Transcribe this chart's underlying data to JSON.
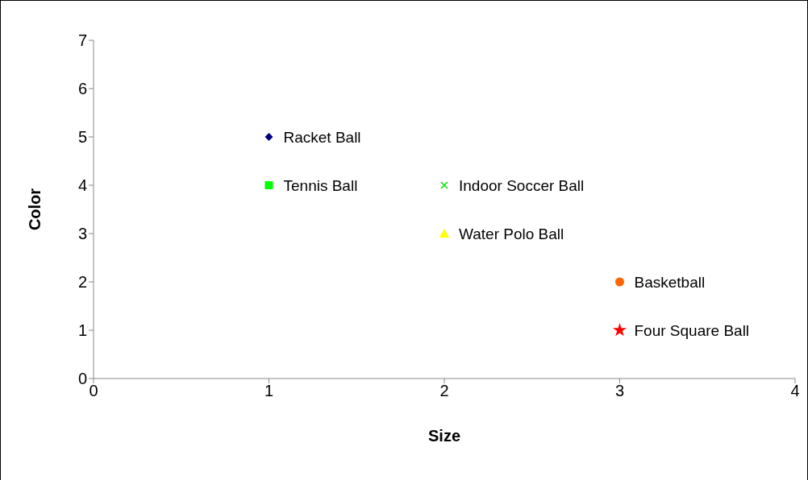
{
  "chart_data": {
    "type": "scatter",
    "xlabel": "Size",
    "ylabel": "Color",
    "xlim": [
      0,
      4
    ],
    "xticks": [
      0,
      1,
      2,
      3,
      4
    ],
    "ylim": [
      0,
      7
    ],
    "yticks": [
      0,
      1,
      2,
      3,
      4,
      5,
      6,
      7
    ],
    "grid": false,
    "legend": false,
    "series": [
      {
        "name": "Racket Ball",
        "color": "#000080",
        "marker": "diamond",
        "x": [
          1
        ],
        "values": [
          5
        ]
      },
      {
        "name": "Tennis Ball",
        "color": "#00ff00",
        "marker": "square",
        "x": [
          1
        ],
        "values": [
          4
        ]
      },
      {
        "name": "Indoor Soccer Ball",
        "color": "#00dd00",
        "marker": "cross",
        "x": [
          2
        ],
        "values": [
          4
        ]
      },
      {
        "name": "Water Polo Ball",
        "color": "#ffff00",
        "marker": "triangle",
        "x": [
          2
        ],
        "values": [
          3
        ]
      },
      {
        "name": "Basketball",
        "color": "#ff6600",
        "marker": "circle",
        "x": [
          3
        ],
        "values": [
          2
        ]
      },
      {
        "name": "Four Square Ball",
        "color": "#ff0000",
        "marker": "star",
        "x": [
          3
        ],
        "values": [
          1
        ]
      }
    ]
  }
}
